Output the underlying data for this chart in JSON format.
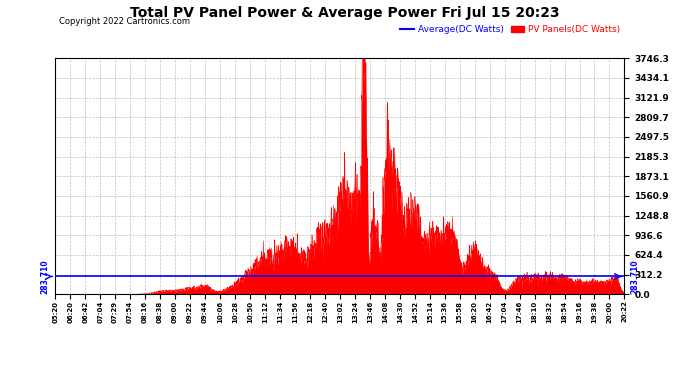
{
  "title": "Total PV Panel Power & Average Power Fri Jul 15 20:23",
  "copyright": "Copyright 2022 Cartronics.com",
  "legend_avg": "Average(DC Watts)",
  "legend_pv": "PV Panels(DC Watts)",
  "avg_value": 283.71,
  "y_ticks": [
    0.0,
    312.2,
    624.4,
    936.6,
    1248.8,
    1560.9,
    1873.1,
    2185.3,
    2497.5,
    2809.7,
    3121.9,
    3434.1,
    3746.3
  ],
  "ylim": [
    0.0,
    3746.3
  ],
  "x_tick_labels": [
    "05:20",
    "06:20",
    "06:42",
    "07:04",
    "07:29",
    "07:54",
    "08:16",
    "08:38",
    "09:00",
    "09:22",
    "09:44",
    "10:06",
    "10:28",
    "10:50",
    "11:12",
    "11:34",
    "11:56",
    "12:18",
    "12:40",
    "13:02",
    "13:24",
    "13:46",
    "14:08",
    "14:30",
    "14:52",
    "15:14",
    "15:36",
    "15:58",
    "16:20",
    "16:42",
    "17:04",
    "17:46",
    "18:10",
    "18:32",
    "18:54",
    "19:16",
    "19:38",
    "20:00",
    "20:22"
  ],
  "background_color": "#ffffff",
  "plot_bg_color": "#ffffff",
  "grid_color": "#b0b0b0",
  "avg_line_color": "#0000ff",
  "pv_fill_color": "#ff0000",
  "pv_line_color": "#ff0000",
  "title_color": "#000000",
  "copyright_color": "#000000",
  "legend_avg_color": "#0000ff",
  "legend_pv_color": "#ff0000",
  "avg_label_left_color": "#0000ff",
  "avg_label_right_color": "#0000ff"
}
